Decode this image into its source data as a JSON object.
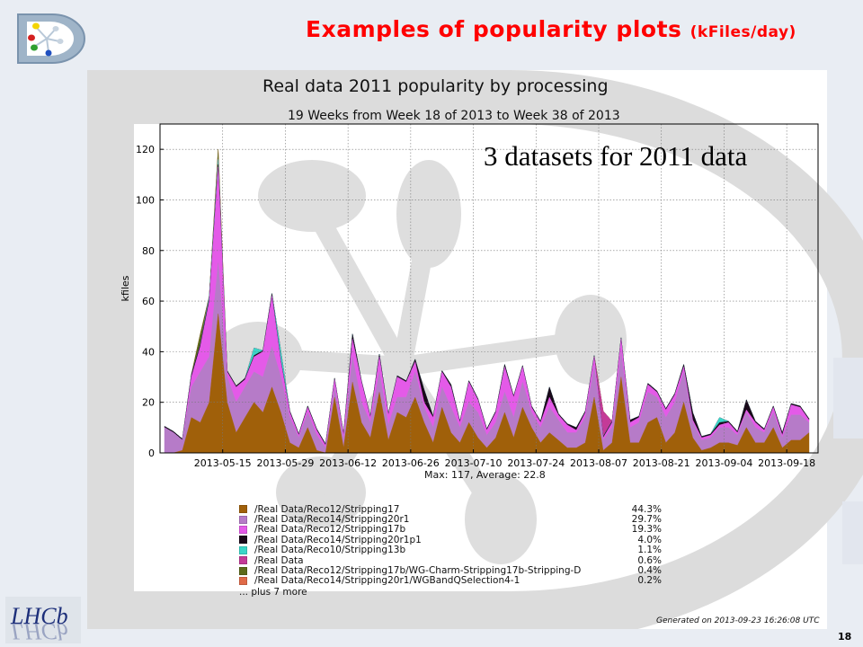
{
  "slide": {
    "title": "Examples of popularity plots ",
    "title_unit": "(kFiles/day)",
    "page_number": "18",
    "annotation": "3 datasets for 2011 data",
    "logo_text": "LHCb",
    "title_color": "#ff0000"
  },
  "chart_data": {
    "type": "area",
    "stacked": true,
    "title": "Real data 2011 popularity by processing",
    "subtitle": "19 Weeks from Week 18 of 2013 to Week 38 of 2013",
    "xlabel": "",
    "ylabel": "kfiles",
    "ylim": [
      0,
      130
    ],
    "yticks": [
      0,
      20,
      40,
      60,
      80,
      100,
      120
    ],
    "xlim": [
      "2013-05-01",
      "2013-09-25"
    ],
    "xticks": [
      "2013-05-15",
      "2013-05-29",
      "2013-06-12",
      "2013-06-26",
      "2013-07-10",
      "2013-07-24",
      "2013-08-07",
      "2013-08-21",
      "2013-09-04",
      "2013-09-18"
    ],
    "grid": true,
    "stats": "Max: 117, Average: 22.8",
    "generated": "Generated on 2013-09-23 16:26:08 UTC",
    "legend_more": "... plus 7 more",
    "dates": [
      "2013-05-02",
      "2013-05-04",
      "2013-05-06",
      "2013-05-08",
      "2013-05-10",
      "2013-05-12",
      "2013-05-14",
      "2013-05-16",
      "2013-05-18",
      "2013-05-20",
      "2013-05-22",
      "2013-05-24",
      "2013-05-26",
      "2013-05-28",
      "2013-05-30",
      "2013-06-01",
      "2013-06-03",
      "2013-06-05",
      "2013-06-07",
      "2013-06-09",
      "2013-06-11",
      "2013-06-13",
      "2013-06-15",
      "2013-06-17",
      "2013-06-19",
      "2013-06-21",
      "2013-06-23",
      "2013-06-25",
      "2013-06-27",
      "2013-06-29",
      "2013-07-01",
      "2013-07-03",
      "2013-07-05",
      "2013-07-07",
      "2013-07-09",
      "2013-07-11",
      "2013-07-13",
      "2013-07-15",
      "2013-07-17",
      "2013-07-19",
      "2013-07-21",
      "2013-07-23",
      "2013-07-25",
      "2013-07-27",
      "2013-07-29",
      "2013-07-31",
      "2013-08-02",
      "2013-08-04",
      "2013-08-06",
      "2013-08-08",
      "2013-08-10",
      "2013-08-12",
      "2013-08-14",
      "2013-08-16",
      "2013-08-18",
      "2013-08-20",
      "2013-08-22",
      "2013-08-24",
      "2013-08-26",
      "2013-08-28",
      "2013-08-30",
      "2013-09-01",
      "2013-09-03",
      "2013-09-05",
      "2013-09-07",
      "2013-09-09",
      "2013-09-11",
      "2013-09-13",
      "2013-09-15",
      "2013-09-17",
      "2013-09-19",
      "2013-09-21",
      "2013-09-23"
    ],
    "series": [
      {
        "name": "/Real Data/Reco12/Stripping17",
        "share": "44.3%",
        "color": "#a0600a",
        "values": [
          0,
          0,
          1,
          14,
          12,
          20,
          55,
          20,
          8,
          14,
          20,
          16,
          26,
          16,
          4,
          2,
          10,
          1,
          0,
          22,
          2,
          28,
          12,
          6,
          24,
          5,
          16,
          14,
          22,
          12,
          4,
          18,
          8,
          4,
          12,
          6,
          2,
          6,
          16,
          6,
          18,
          10,
          4,
          8,
          5,
          2,
          2,
          4,
          22,
          1,
          4,
          30,
          4,
          4,
          12,
          14,
          4,
          8,
          20,
          6,
          1,
          2,
          4,
          4,
          3,
          10,
          4,
          4,
          10,
          2,
          5,
          5,
          8
        ]
      },
      {
        "name": "/Real Data/Reco14/Stripping20r1",
        "share": "29.7%",
        "color": "#b67bc8",
        "values": [
          10,
          8,
          4,
          12,
          20,
          18,
          20,
          10,
          12,
          12,
          12,
          14,
          16,
          14,
          10,
          4,
          6,
          6,
          2,
          4,
          3,
          10,
          8,
          6,
          8,
          6,
          6,
          8,
          10,
          6,
          6,
          8,
          10,
          6,
          8,
          10,
          5,
          6,
          8,
          8,
          10,
          6,
          6,
          10,
          8,
          6,
          6,
          10,
          12,
          4,
          6,
          10,
          6,
          8,
          12,
          8,
          10,
          12,
          12,
          6,
          4,
          4,
          6,
          6,
          4,
          6,
          6,
          4,
          6,
          4,
          10,
          10,
          4
        ]
      },
      {
        "name": "/Real Data/Reco12/Stripping17b",
        "share": "19.3%",
        "color": "#e45ae8",
        "values": [
          0,
          0,
          0,
          4,
          10,
          22,
          38,
          2,
          6,
          3,
          6,
          10,
          20,
          6,
          2,
          1,
          2,
          2,
          1,
          3,
          2,
          7,
          8,
          2,
          6,
          4,
          8,
          6,
          4,
          2,
          4,
          6,
          8,
          2,
          8,
          5,
          2,
          4,
          10,
          8,
          6,
          2,
          2,
          4,
          2,
          3,
          1,
          2,
          4,
          1,
          2,
          5,
          2,
          2,
          3,
          2,
          3,
          3,
          2,
          1,
          1,
          1,
          1,
          2,
          1,
          1,
          2,
          1,
          2,
          1,
          4,
          3,
          1
        ]
      },
      {
        "name": "/Real Data/Reco14/Stripping20r1p1",
        "share": "4.0%",
        "color": "#1a0a1a",
        "values": [
          0.5,
          0.5,
          0.5,
          1,
          1,
          1,
          1,
          0.5,
          0.5,
          0.5,
          0.5,
          0.5,
          1,
          0.5,
          0.5,
          0.5,
          0.5,
          0.5,
          0.5,
          0.5,
          0.5,
          2,
          0.5,
          0.5,
          1,
          0.5,
          0.5,
          0.5,
          1,
          5,
          0.5,
          0.5,
          1,
          0.5,
          0.5,
          0.5,
          0.5,
          0.5,
          1,
          0.5,
          0.5,
          0.5,
          0.5,
          4,
          0.5,
          0.5,
          1,
          0.5,
          0.5,
          0.5,
          0.5,
          0.5,
          1,
          0.5,
          0.5,
          0.5,
          0.5,
          0.5,
          1,
          3,
          0.5,
          0.5,
          1,
          0.5,
          0.5,
          4,
          0.5,
          0.5,
          0.5,
          1,
          0.5,
          0.5,
          0.5
        ]
      },
      {
        "name": "/Real Data/Reco10/Stripping13b",
        "share": "1.1%",
        "color": "#3ad6c8",
        "values": [
          0,
          0,
          0,
          0,
          0,
          1,
          2,
          0,
          0,
          0,
          3,
          0,
          0,
          4,
          0,
          0,
          0,
          0,
          0,
          0,
          0,
          0,
          0,
          0,
          0,
          0,
          0,
          0,
          0,
          0,
          0,
          0,
          0,
          0,
          0,
          0,
          0,
          0,
          0,
          0,
          0,
          0,
          0,
          0,
          0,
          0,
          0,
          0,
          0,
          0,
          0,
          0,
          0,
          0,
          0,
          0,
          0,
          0,
          0,
          0,
          0,
          0,
          2,
          0,
          0,
          0,
          0,
          0,
          0,
          0,
          0,
          0,
          0
        ]
      },
      {
        "name": "/Real Data",
        "share": "0.6%",
        "color": "#c43a98",
        "values": [
          0,
          0,
          0,
          0,
          0,
          0,
          0,
          0,
          0,
          0,
          0,
          0,
          0,
          0,
          0,
          0,
          0,
          0,
          0,
          0,
          0,
          0,
          0,
          0,
          0,
          0,
          0,
          0,
          0,
          0,
          0,
          0,
          0,
          0,
          0,
          0,
          0,
          0,
          0,
          0,
          0,
          0,
          0,
          0,
          0,
          0,
          0,
          0,
          0,
          10,
          0,
          0,
          0,
          0,
          0,
          0,
          0,
          0,
          0,
          0,
          0,
          0,
          0,
          0,
          0,
          0,
          0,
          0,
          0,
          0,
          0,
          0,
          0
        ]
      },
      {
        "name": "/Real Data/Reco12/Stripping17b/WG-Charm-Stripping17b-Stripping-D",
        "share": "0.4%",
        "color": "#5c6a1a",
        "values": [
          0,
          0,
          0,
          0,
          4,
          0,
          4,
          0,
          0,
          0,
          0,
          0,
          0,
          0,
          0,
          0,
          0,
          0,
          0,
          0,
          0,
          0,
          0,
          0,
          0,
          0,
          0,
          0,
          0,
          0,
          0,
          0,
          0,
          0,
          0,
          0,
          0,
          0,
          0,
          0,
          0,
          0,
          0,
          0,
          0,
          0,
          0,
          0,
          0,
          0,
          0,
          0,
          0,
          0,
          0,
          0,
          0,
          0,
          0,
          0,
          0,
          0,
          0,
          0,
          0,
          0,
          0,
          0,
          0,
          0,
          0,
          0,
          0
        ]
      },
      {
        "name": "/Real Data/Reco14/Stripping20r1/WGBandQSelection4-1",
        "share": "0.2%",
        "color": "#e06a48",
        "values": [
          0,
          0,
          0,
          0,
          0,
          0,
          0,
          0,
          0,
          0,
          0,
          0,
          0,
          0,
          0,
          0,
          0,
          0,
          0,
          0,
          0,
          0,
          0,
          0,
          0,
          0,
          0,
          0,
          0,
          0,
          0,
          0,
          0,
          0,
          0,
          0,
          0,
          0,
          0,
          0,
          0,
          0,
          0,
          0,
          0,
          0,
          0,
          0,
          0,
          0,
          0,
          0,
          0,
          0,
          0,
          0,
          0,
          0,
          0,
          0,
          0,
          0,
          0,
          0,
          0,
          0,
          0,
          0,
          0,
          0,
          0,
          0,
          0
        ]
      }
    ]
  }
}
